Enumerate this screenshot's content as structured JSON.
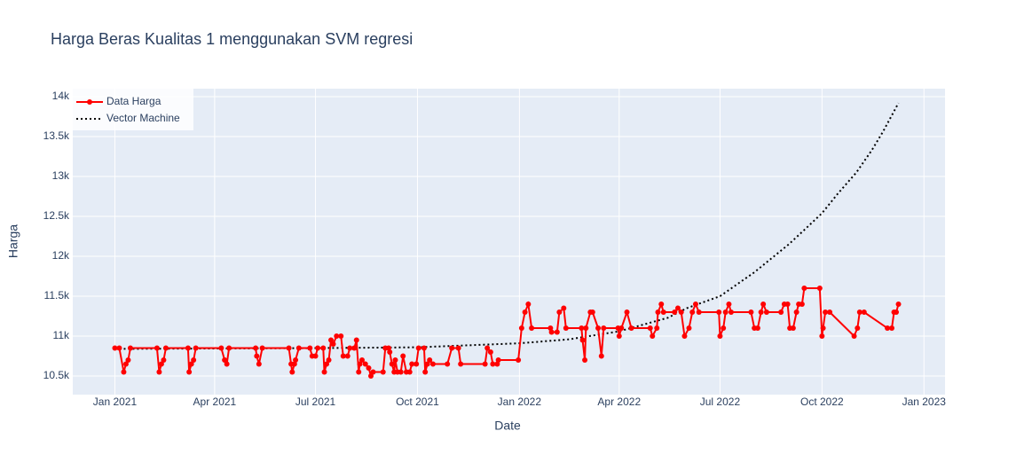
{
  "chart_data": {
    "type": "line",
    "title": "Harga Beras Kualitas 1 menggunakan SVM regresi",
    "x_label": "Date",
    "y_label": "Harga",
    "xlim": [
      "2020-11-24",
      "2023-01-20"
    ],
    "xticks": [
      {
        "value": "2021-01-01",
        "label": "Jan 2021"
      },
      {
        "value": "2021-04-01",
        "label": "Apr 2021"
      },
      {
        "value": "2021-07-01",
        "label": "Jul 2021"
      },
      {
        "value": "2021-10-01",
        "label": "Oct 2021"
      },
      {
        "value": "2022-01-01",
        "label": "Jan 2022"
      },
      {
        "value": "2022-04-01",
        "label": "Apr 2022"
      },
      {
        "value": "2022-07-01",
        "label": "Jul 2022"
      },
      {
        "value": "2022-10-01",
        "label": "Oct 2022"
      },
      {
        "value": "2023-01-01",
        "label": "Jan 2023"
      }
    ],
    "ylim": [
      10267,
      14100
    ],
    "yticks": [
      {
        "value": 10500,
        "label": "10.5k"
      },
      {
        "value": 11000,
        "label": "11k"
      },
      {
        "value": 11500,
        "label": "11.5k"
      },
      {
        "value": 12000,
        "label": "12k"
      },
      {
        "value": 12500,
        "label": "12.5k"
      },
      {
        "value": 13000,
        "label": "13k"
      },
      {
        "value": 13500,
        "label": "13.5k"
      },
      {
        "value": 14000,
        "label": "14k"
      }
    ],
    "grid": true,
    "legend": "top-left",
    "series": [
      {
        "name": "Data Harga",
        "color": "#ff0000",
        "markers": true,
        "dash": "solid",
        "x": [
          "2021-01-01",
          "2021-01-05",
          "2021-01-09",
          "2021-01-11",
          "2021-01-13",
          "2021-01-15",
          "2021-02-08",
          "2021-02-10",
          "2021-02-12",
          "2021-02-14",
          "2021-02-16",
          "2021-03-08",
          "2021-03-09",
          "2021-03-11",
          "2021-03-13",
          "2021-03-15",
          "2021-04-07",
          "2021-04-10",
          "2021-04-12",
          "2021-04-14",
          "2021-05-08",
          "2021-05-09",
          "2021-05-11",
          "2021-05-14",
          "2021-06-07",
          "2021-06-09",
          "2021-06-10",
          "2021-06-12",
          "2021-06-13",
          "2021-06-16",
          "2021-06-26",
          "2021-06-28",
          "2021-07-01",
          "2021-07-03",
          "2021-07-08",
          "2021-07-09",
          "2021-07-11",
          "2021-07-13",
          "2021-07-15",
          "2021-07-17",
          "2021-07-20",
          "2021-07-24",
          "2021-07-26",
          "2021-07-30",
          "2021-08-01",
          "2021-08-05",
          "2021-08-07",
          "2021-08-09",
          "2021-08-10",
          "2021-08-12",
          "2021-08-15",
          "2021-08-18",
          "2021-08-20",
          "2021-08-22",
          "2021-08-31",
          "2021-09-02",
          "2021-09-05",
          "2021-09-06",
          "2021-09-08",
          "2021-09-10",
          "2021-09-11",
          "2021-09-13",
          "2021-09-16",
          "2021-09-18",
          "2021-09-21",
          "2021-09-24",
          "2021-09-26",
          "2021-09-30",
          "2021-10-02",
          "2021-10-07",
          "2021-10-08",
          "2021-10-10",
          "2021-10-12",
          "2021-10-15",
          "2021-10-28",
          "2021-11-01",
          "2021-11-07",
          "2021-11-09",
          "2021-12-01",
          "2021-12-03",
          "2021-12-06",
          "2021-12-08",
          "2021-12-12",
          "2021-12-13",
          "2021-12-31",
          "2022-01-03",
          "2022-01-06",
          "2022-01-09",
          "2022-01-12",
          "2022-01-29",
          "2022-01-30",
          "2022-02-04",
          "2022-02-06",
          "2022-02-10",
          "2022-02-12",
          "2022-02-26",
          "2022-02-27",
          "2022-03-01",
          "2022-03-02",
          "2022-03-06",
          "2022-03-08",
          "2022-03-13",
          "2022-03-16",
          "2022-03-18",
          "2022-03-31",
          "2022-04-01",
          "2022-04-03",
          "2022-04-08",
          "2022-04-12",
          "2022-04-29",
          "2022-05-01",
          "2022-05-05",
          "2022-05-06",
          "2022-05-09",
          "2022-05-11",
          "2022-05-21",
          "2022-05-24",
          "2022-05-27",
          "2022-05-30",
          "2022-06-03",
          "2022-06-06",
          "2022-06-09",
          "2022-06-12",
          "2022-06-30",
          "2022-07-01",
          "2022-07-04",
          "2022-07-06",
          "2022-07-09",
          "2022-07-11",
          "2022-07-29",
          "2022-08-01",
          "2022-08-04",
          "2022-08-07",
          "2022-08-09",
          "2022-08-12",
          "2022-08-25",
          "2022-08-28",
          "2022-08-31",
          "2022-09-02",
          "2022-09-05",
          "2022-09-08",
          "2022-09-10",
          "2022-09-13",
          "2022-09-15",
          "2022-09-29",
          "2022-10-01",
          "2022-10-02",
          "2022-10-04",
          "2022-10-08",
          "2022-10-30",
          "2022-11-02",
          "2022-11-04",
          "2022-11-08",
          "2022-11-29",
          "2022-12-03",
          "2022-12-05",
          "2022-12-07",
          "2022-12-09"
        ],
        "values": [
          10850,
          10850,
          10550,
          10650,
          10700,
          10850,
          10850,
          10550,
          10650,
          10700,
          10850,
          10850,
          10550,
          10650,
          10700,
          10850,
          10850,
          10700,
          10650,
          10850,
          10850,
          10750,
          10650,
          10850,
          10850,
          10650,
          10550,
          10650,
          10700,
          10850,
          10850,
          10750,
          10750,
          10850,
          10850,
          10550,
          10650,
          10700,
          10950,
          10900,
          11000,
          11000,
          10750,
          10750,
          10850,
          10850,
          10950,
          10550,
          10650,
          10700,
          10650,
          10600,
          10500,
          10550,
          10550,
          10850,
          10850,
          10800,
          10650,
          10550,
          10700,
          10550,
          10550,
          10750,
          10550,
          10550,
          10650,
          10650,
          10850,
          10850,
          10550,
          10650,
          10700,
          10650,
          10650,
          10850,
          10850,
          10650,
          10650,
          10850,
          10800,
          10650,
          10650,
          10700,
          10700,
          11100,
          11300,
          11400,
          11100,
          11100,
          11050,
          11050,
          11300,
          11350,
          11100,
          11100,
          10950,
          10700,
          11100,
          11300,
          11300,
          11100,
          10750,
          11100,
          11100,
          11000,
          11100,
          11300,
          11100,
          11100,
          11000,
          11100,
          11300,
          11400,
          11300,
          11300,
          11350,
          11300,
          11000,
          11100,
          11300,
          11400,
          11300,
          11300,
          11000,
          11100,
          11300,
          11400,
          11300,
          11300,
          11100,
          11100,
          11300,
          11400,
          11300,
          11300,
          11400,
          11400,
          11100,
          11100,
          11300,
          11400,
          11400,
          11600,
          11600,
          11000,
          11100,
          11300,
          11300,
          11000,
          11100,
          11300,
          11300,
          11100,
          11100,
          11300,
          11300,
          11400
        ]
      },
      {
        "name": "Vector Machine",
        "color": "#000000",
        "markers": false,
        "dash": "dot",
        "x": [
          "2021-01-01",
          "2021-04-01",
          "2021-07-01",
          "2021-10-01",
          "2022-01-01",
          "2022-02-15",
          "2022-04-01",
          "2022-05-15",
          "2022-06-01",
          "2022-07-01",
          "2022-08-01",
          "2022-09-01",
          "2022-09-15",
          "2022-10-01",
          "2022-10-15",
          "2022-11-01",
          "2022-11-15",
          "2022-11-25",
          "2022-12-09"
        ],
        "values": [
          10840,
          10845,
          10850,
          10860,
          10910,
          10960,
          11060,
          11230,
          11350,
          11500,
          11800,
          12150,
          12330,
          12540,
          12780,
          13050,
          13330,
          13560,
          13920
        ]
      }
    ]
  }
}
